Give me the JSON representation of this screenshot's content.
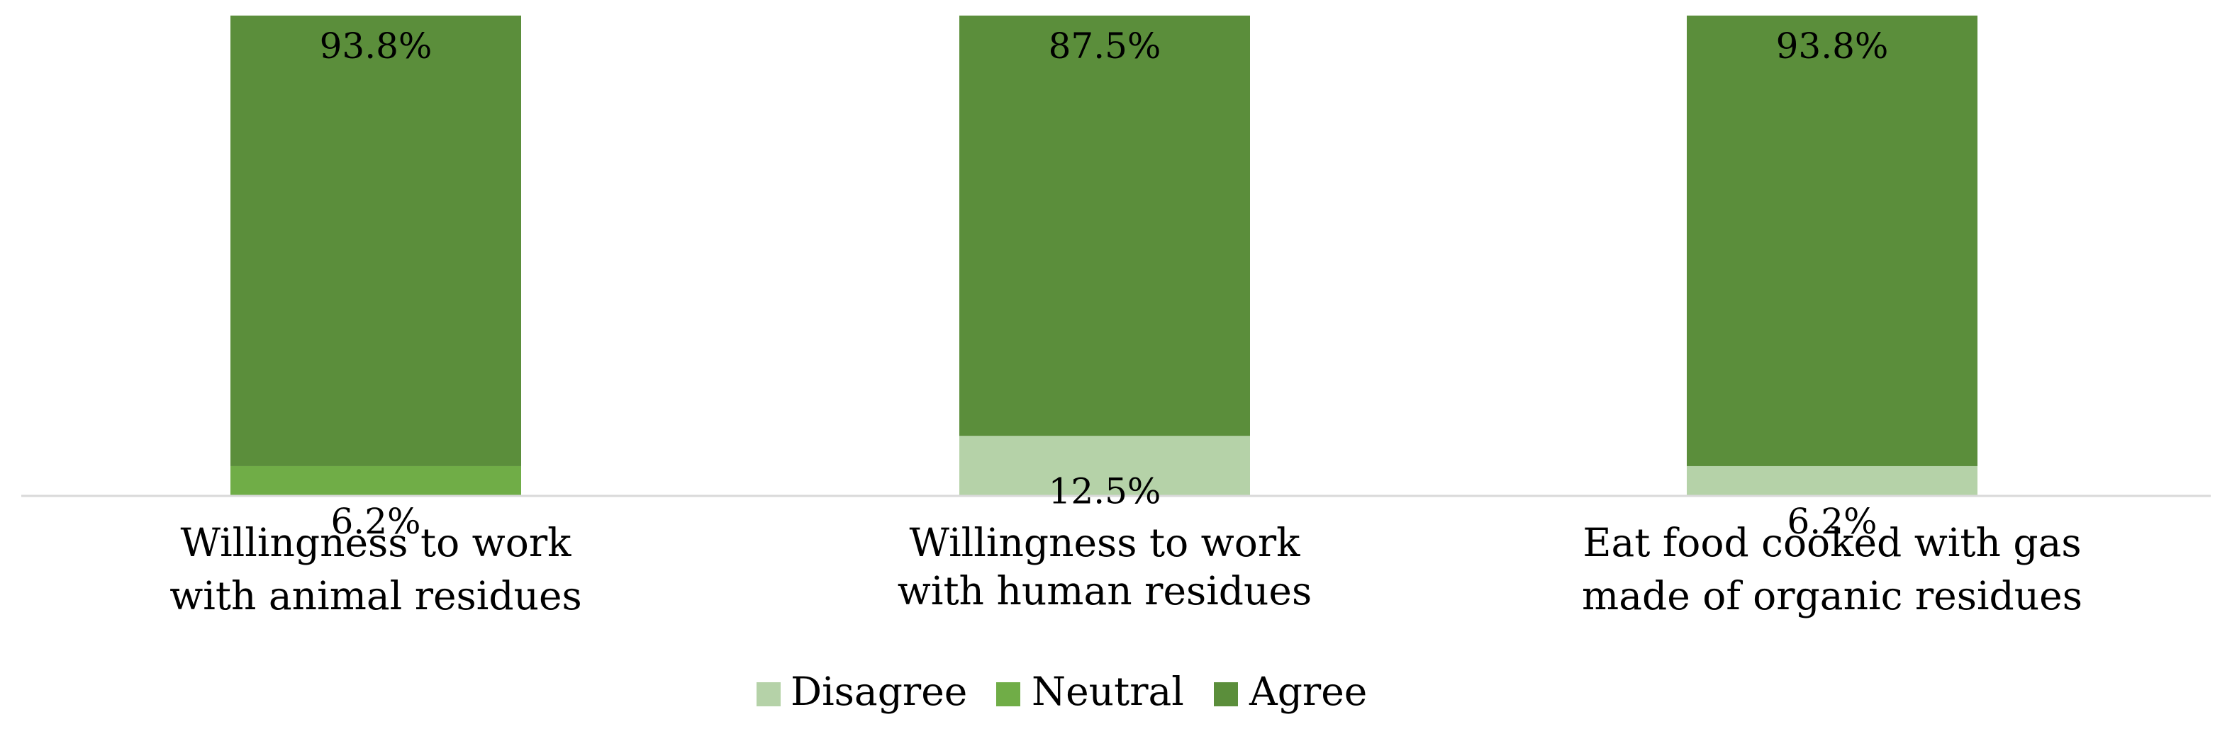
{
  "chart_data": {
    "type": "bar",
    "stacked": true,
    "percent": true,
    "title": "",
    "xlabel": "",
    "ylabel": "",
    "ylim": [
      0,
      100
    ],
    "grid": false,
    "legend_position": "bottom",
    "categories": [
      [
        "Willingness to work",
        "with animal residues"
      ],
      [
        "Willingness to work",
        "with human residues"
      ],
      [
        "Eat food cooked with gas",
        "made of organic residues"
      ]
    ],
    "series": [
      {
        "name": "Disagree",
        "color": "#b5d2a8",
        "values": [
          0,
          12.5,
          6.2
        ],
        "labels": [
          "",
          "12.5%",
          "6.2%"
        ]
      },
      {
        "name": "Neutral",
        "color": "#70ad47",
        "values": [
          6.2,
          0,
          0
        ],
        "labels": [
          "6.2%",
          "",
          ""
        ]
      },
      {
        "name": "Agree",
        "color": "#5b8e3b",
        "values": [
          93.8,
          87.5,
          93.8
        ],
        "labels": [
          "93.8%",
          "87.5%",
          "93.8%"
        ]
      }
    ],
    "axis_line_color": "#d9d9d9"
  }
}
